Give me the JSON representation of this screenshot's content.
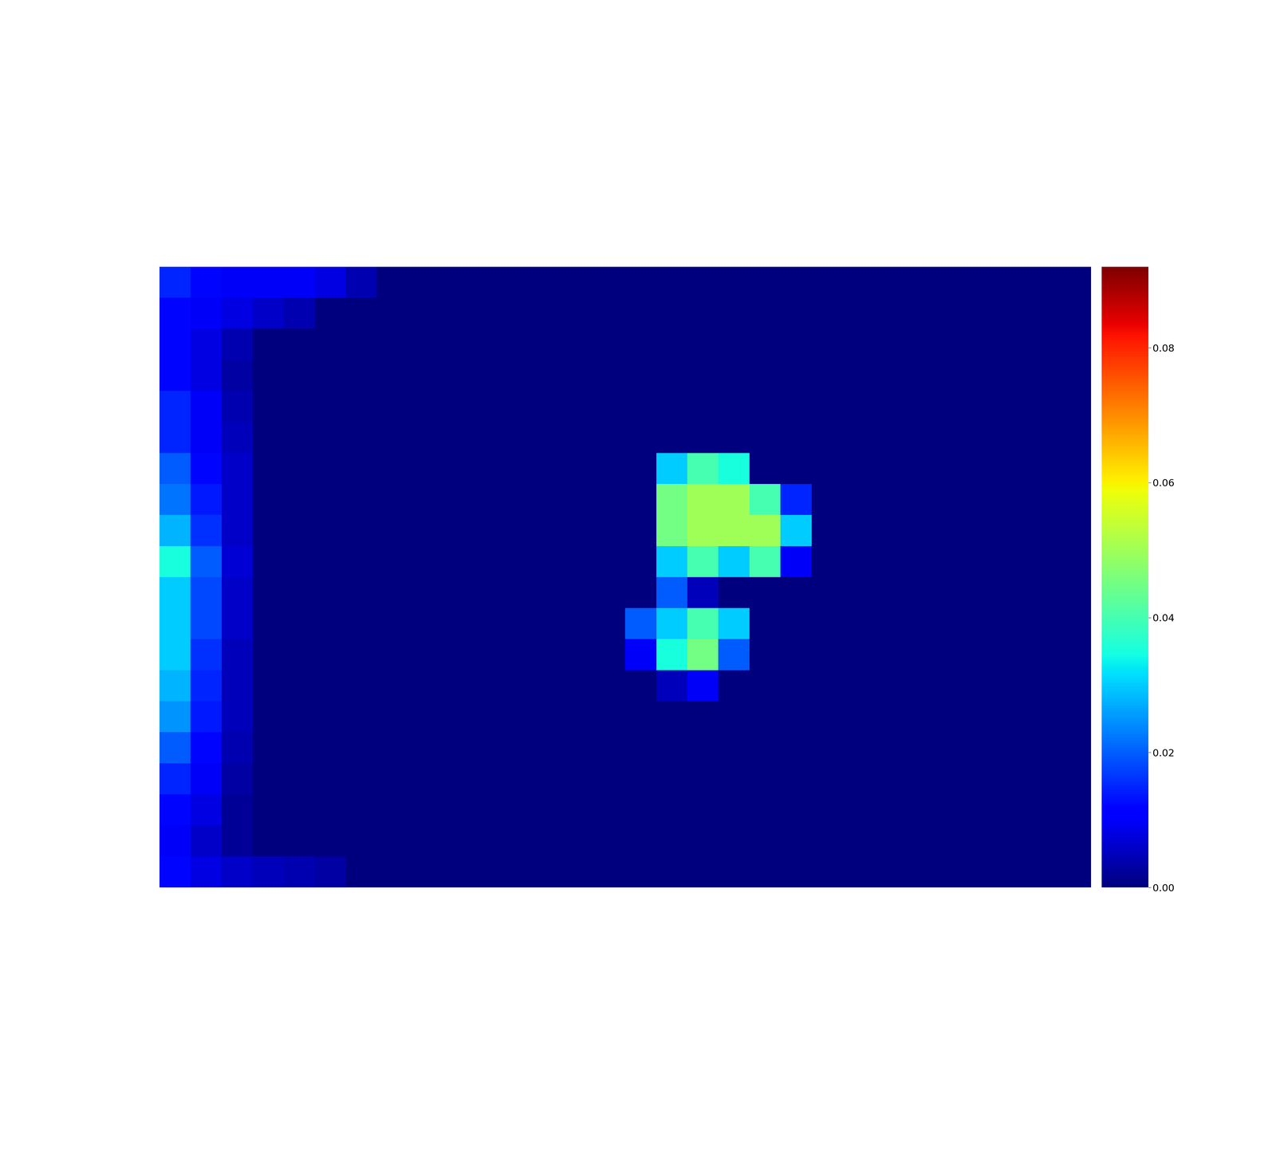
{
  "chart_data": {
    "type": "heatmap",
    "color": "jet",
    "tick_labels": false,
    "colorbar_lim": [
      0,
      0.092
    ],
    "colorbar_ticks": [
      {
        "value": 0,
        "label": "0.00"
      },
      0.02,
      0.04,
      0.06,
      0.08
    ],
    "cells": [
      [
        0.015,
        0.012,
        0.01,
        0.01,
        0.01,
        0.008,
        0.004,
        0,
        0,
        0,
        0,
        0,
        0,
        0,
        0,
        0,
        0,
        0,
        0,
        0,
        0,
        0,
        0,
        0,
        0,
        0,
        0,
        0,
        0,
        0
      ],
      [
        0.012,
        0.01,
        0.008,
        0.006,
        0.004,
        0,
        0,
        0,
        0,
        0,
        0,
        0,
        0,
        0,
        0,
        0,
        0,
        0,
        0,
        0,
        0,
        0,
        0,
        0,
        0,
        0,
        0,
        0,
        0,
        0
      ],
      [
        0.012,
        0.008,
        0.004,
        0,
        0,
        0,
        0,
        0,
        0,
        0,
        0,
        0,
        0,
        0,
        0,
        0,
        0,
        0,
        0,
        0,
        0,
        0,
        0,
        0,
        0,
        0,
        0,
        0,
        0,
        0
      ],
      [
        0.012,
        0.008,
        0.003,
        0,
        0,
        0,
        0,
        0,
        0,
        0,
        0,
        0,
        0,
        0,
        0,
        0,
        0,
        0,
        0,
        0,
        0,
        0,
        0,
        0,
        0,
        0,
        0,
        0,
        0,
        0
      ],
      [
        0.015,
        0.01,
        0.004,
        0,
        0,
        0,
        0,
        0,
        0,
        0,
        0,
        0,
        0,
        0,
        0,
        0,
        0,
        0,
        0,
        0,
        0,
        0,
        0,
        0,
        0,
        0,
        0,
        0,
        0,
        0
      ],
      [
        0.015,
        0.01,
        0.005,
        0,
        0,
        0,
        0,
        0,
        0,
        0,
        0,
        0,
        0,
        0,
        0,
        0,
        0,
        0,
        0,
        0,
        0,
        0,
        0,
        0,
        0,
        0,
        0,
        0,
        0,
        0
      ],
      [
        0.02,
        0.012,
        0.006,
        0,
        0,
        0,
        0,
        0,
        0,
        0,
        0,
        0,
        0,
        0,
        0,
        0,
        0.03,
        0.04,
        0.035,
        0,
        0,
        0,
        0,
        0,
        0,
        0,
        0,
        0,
        0,
        0
      ],
      [
        0.022,
        0.014,
        0.006,
        0,
        0,
        0,
        0,
        0,
        0,
        0,
        0,
        0,
        0,
        0,
        0,
        0,
        0.045,
        0.05,
        0.05,
        0.04,
        0.015,
        0,
        0,
        0,
        0,
        0,
        0,
        0,
        0,
        0
      ],
      [
        0.028,
        0.016,
        0.006,
        0,
        0,
        0,
        0,
        0,
        0,
        0,
        0,
        0,
        0,
        0,
        0,
        0,
        0.045,
        0.05,
        0.05,
        0.05,
        0.03,
        0,
        0,
        0,
        0,
        0,
        0,
        0,
        0,
        0
      ],
      [
        0.035,
        0.02,
        0.007,
        0,
        0,
        0,
        0,
        0,
        0,
        0,
        0,
        0,
        0,
        0,
        0,
        0,
        0.03,
        0.04,
        0.03,
        0.04,
        0.01,
        0,
        0,
        0,
        0,
        0,
        0,
        0,
        0,
        0
      ],
      [
        0.03,
        0.018,
        0.006,
        0,
        0,
        0,
        0,
        0,
        0,
        0,
        0,
        0,
        0,
        0,
        0,
        0,
        0.02,
        0.005,
        0,
        0,
        0,
        0,
        0,
        0,
        0,
        0,
        0,
        0,
        0,
        0
      ],
      [
        0.03,
        0.018,
        0.006,
        0,
        0,
        0,
        0,
        0,
        0,
        0,
        0,
        0,
        0,
        0,
        0,
        0.02,
        0.03,
        0.04,
        0.03,
        0,
        0,
        0,
        0,
        0,
        0,
        0,
        0,
        0,
        0,
        0
      ],
      [
        0.03,
        0.016,
        0.005,
        0,
        0,
        0,
        0,
        0,
        0,
        0,
        0,
        0,
        0,
        0,
        0,
        0.01,
        0.035,
        0.045,
        0.02,
        0,
        0,
        0,
        0,
        0,
        0,
        0,
        0,
        0,
        0,
        0
      ],
      [
        0.028,
        0.015,
        0.005,
        0,
        0,
        0,
        0,
        0,
        0,
        0,
        0,
        0,
        0,
        0,
        0,
        0,
        0.005,
        0.01,
        0,
        0,
        0,
        0,
        0,
        0,
        0,
        0,
        0,
        0,
        0,
        0
      ],
      [
        0.025,
        0.014,
        0.005,
        0,
        0,
        0,
        0,
        0,
        0,
        0,
        0,
        0,
        0,
        0,
        0,
        0,
        0,
        0,
        0,
        0,
        0,
        0,
        0,
        0,
        0,
        0,
        0,
        0,
        0,
        0
      ],
      [
        0.02,
        0.012,
        0.004,
        0,
        0,
        0,
        0,
        0,
        0,
        0,
        0,
        0,
        0,
        0,
        0,
        0,
        0,
        0,
        0,
        0,
        0,
        0,
        0,
        0,
        0,
        0,
        0,
        0,
        0,
        0
      ],
      [
        0.015,
        0.01,
        0.003,
        0,
        0,
        0,
        0,
        0,
        0,
        0,
        0,
        0,
        0,
        0,
        0,
        0,
        0,
        0,
        0,
        0,
        0,
        0,
        0,
        0,
        0,
        0,
        0,
        0,
        0,
        0
      ],
      [
        0.012,
        0.008,
        0.002,
        0,
        0,
        0,
        0,
        0,
        0,
        0,
        0,
        0,
        0,
        0,
        0,
        0,
        0,
        0,
        0,
        0,
        0,
        0,
        0,
        0,
        0,
        0,
        0,
        0,
        0,
        0
      ],
      [
        0.01,
        0.006,
        0.002,
        0,
        0,
        0,
        0,
        0,
        0,
        0,
        0,
        0,
        0,
        0,
        0,
        0,
        0,
        0,
        0,
        0,
        0,
        0,
        0,
        0,
        0,
        0,
        0,
        0,
        0,
        0
      ],
      [
        0.012,
        0.008,
        0.006,
        0.005,
        0.004,
        0.003,
        0,
        0,
        0,
        0,
        0,
        0,
        0,
        0,
        0,
        0,
        0,
        0,
        0,
        0,
        0,
        0,
        0,
        0,
        0,
        0,
        0,
        0,
        0,
        0
      ]
    ]
  }
}
